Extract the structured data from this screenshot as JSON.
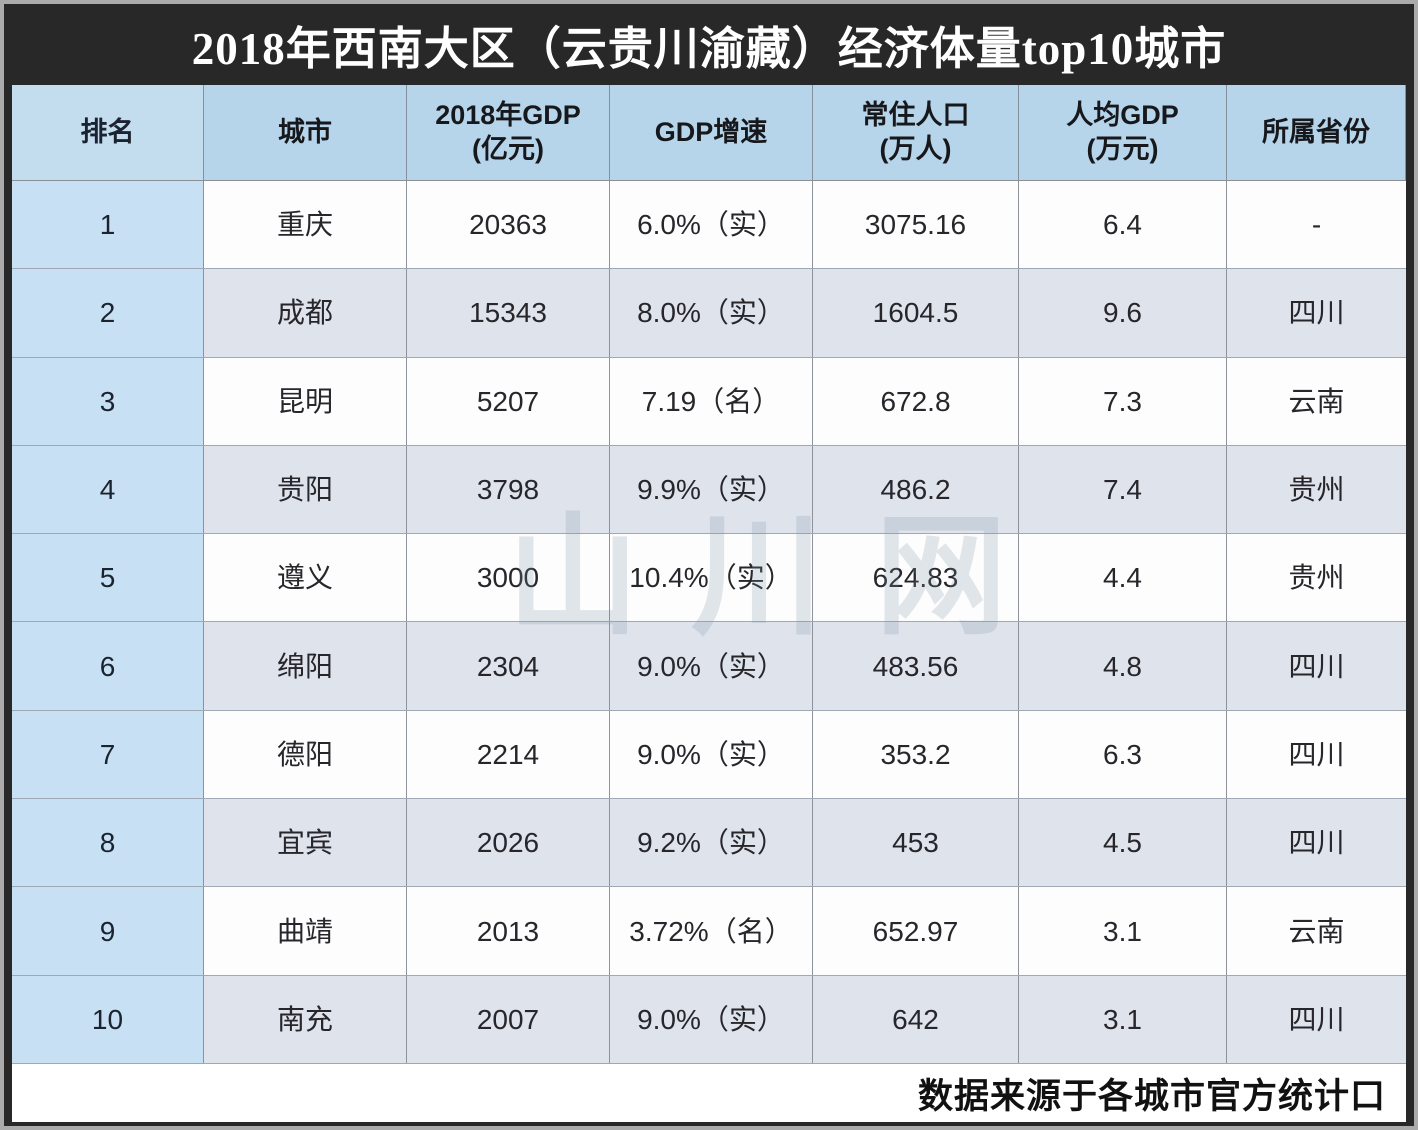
{
  "title": "2018年西南大区（云贵川渝藏）经济体量top10城市",
  "watermark": "山川网",
  "footer": {
    "source_note": "数据来源于各城市官方统计口"
  },
  "colors": {
    "frame_dark": "#282828",
    "outer_edge": "#ababab",
    "header_bg": "#b6d4ea",
    "rank_col_bg": "#c8e0f3",
    "row_odd_bg": "#fdfdfe",
    "row_even_bg": "#dfe3ec",
    "title_text": "#ffffff",
    "body_text": "#26262b"
  },
  "table": {
    "columns": [
      {
        "label": "排名",
        "sub": ""
      },
      {
        "label": "城市",
        "sub": ""
      },
      {
        "label": "2018年GDP",
        "sub": "(亿元)"
      },
      {
        "label": "GDP增速",
        "sub": ""
      },
      {
        "label": "常住人口",
        "sub": "(万人)"
      },
      {
        "label": "人均GDP",
        "sub": "(万元)"
      },
      {
        "label": "所属省份",
        "sub": ""
      }
    ],
    "rows": [
      {
        "rank": "1",
        "city": "重庆",
        "gdp": "20363",
        "growth": "6.0%（实）",
        "population": "3075.16",
        "per_capita": "6.4",
        "province": "-"
      },
      {
        "rank": "2",
        "city": "成都",
        "gdp": "15343",
        "growth": "8.0%（实）",
        "population": "1604.5",
        "per_capita": "9.6",
        "province": "四川"
      },
      {
        "rank": "3",
        "city": "昆明",
        "gdp": "5207",
        "growth": "7.19（名）",
        "population": "672.8",
        "per_capita": "7.3",
        "province": "云南"
      },
      {
        "rank": "4",
        "city": "贵阳",
        "gdp": "3798",
        "growth": "9.9%（实）",
        "population": "486.2",
        "per_capita": "7.4",
        "province": "贵州"
      },
      {
        "rank": "5",
        "city": "遵义",
        "gdp": "3000",
        "growth": "10.4%（实）",
        "population": "624.83",
        "per_capita": "4.4",
        "province": "贵州"
      },
      {
        "rank": "6",
        "city": "绵阳",
        "gdp": "2304",
        "growth": "9.0%（实）",
        "population": "483.56",
        "per_capita": "4.8",
        "province": "四川"
      },
      {
        "rank": "7",
        "city": "德阳",
        "gdp": "2214",
        "growth": "9.0%（实）",
        "population": "353.2",
        "per_capita": "6.3",
        "province": "四川"
      },
      {
        "rank": "8",
        "city": "宜宾",
        "gdp": "2026",
        "growth": "9.2%（实）",
        "population": "453",
        "per_capita": "4.5",
        "province": "四川"
      },
      {
        "rank": "9",
        "city": "曲靖",
        "gdp": "2013",
        "growth": "3.72%（名）",
        "population": "652.97",
        "per_capita": "3.1",
        "province": "云南"
      },
      {
        "rank": "10",
        "city": "南充",
        "gdp": "2007",
        "growth": "9.0%（实）",
        "population": "642",
        "per_capita": "3.1",
        "province": "四川"
      }
    ]
  },
  "chart_data": {
    "type": "table",
    "title": "2018年西南大区（云贵川渝藏）经济体量top10城市",
    "columns": [
      "排名",
      "城市",
      "2018年GDP(亿元)",
      "GDP增速",
      "常住人口(万人)",
      "人均GDP(万元)",
      "所属省份"
    ],
    "rows": [
      [
        "1",
        "重庆",
        "20363",
        "6.0%（实）",
        "3075.16",
        "6.4",
        "-"
      ],
      [
        "2",
        "成都",
        "15343",
        "8.0%（实）",
        "1604.5",
        "9.6",
        "四川"
      ],
      [
        "3",
        "昆明",
        "5207",
        "7.19（名）",
        "672.8",
        "7.3",
        "云南"
      ],
      [
        "4",
        "贵阳",
        "3798",
        "9.9%（实）",
        "486.2",
        "7.4",
        "贵州"
      ],
      [
        "5",
        "遵义",
        "3000",
        "10.4%（实）",
        "624.83",
        "4.4",
        "贵州"
      ],
      [
        "6",
        "绵阳",
        "2304",
        "9.0%（实）",
        "483.56",
        "4.8",
        "四川"
      ],
      [
        "7",
        "德阳",
        "2214",
        "9.0%（实）",
        "353.2",
        "6.3",
        "四川"
      ],
      [
        "8",
        "宜宾",
        "2026",
        "9.2%（实）",
        "453",
        "4.5",
        "四川"
      ],
      [
        "9",
        "曲靖",
        "2013",
        "3.72%（名）",
        "652.97",
        "3.1",
        "云南"
      ],
      [
        "10",
        "南充",
        "2007",
        "9.0%（实）",
        "642",
        "3.1",
        "四川"
      ]
    ],
    "source_note": "数据来源于各城市官方统计口"
  }
}
